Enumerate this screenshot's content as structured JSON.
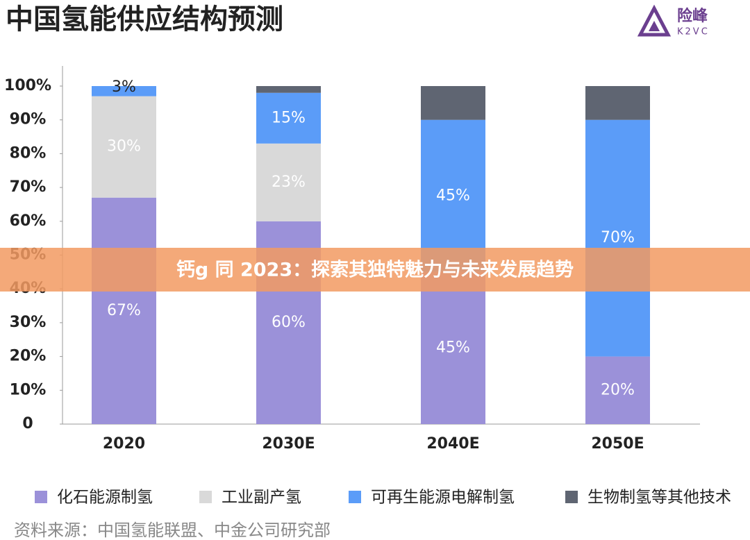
{
  "chart_data": {
    "type": "bar",
    "stacked": true,
    "title": "中国氢能供应结构预测",
    "logo": {
      "name": "险峰",
      "sub": "K2VC"
    },
    "source": "资料来源：中国氢能联盟、中金公司研究部",
    "banner": "钙g 同 2023：探索其独特魅力与未来发展趋势",
    "categories": [
      "2020",
      "2030E",
      "2040E",
      "2050E"
    ],
    "series": [
      {
        "name": "化石能源制氢",
        "color": "#9b91d9",
        "values": [
          67,
          60,
          45,
          20
        ],
        "value_labels": [
          "67%",
          "60%",
          "45%",
          "20%"
        ]
      },
      {
        "name": "工业副产氢",
        "color": "#d9d9d9",
        "values": [
          30,
          23,
          0,
          0
        ],
        "value_labels": [
          "30%",
          "23%",
          null,
          null
        ]
      },
      {
        "name": "可再生能源电解制氢",
        "color": "#5b9cf8",
        "values": [
          3,
          15,
          45,
          70
        ],
        "value_labels": [
          "3%",
          "15%",
          "45%",
          "70%"
        ]
      },
      {
        "name": "生物制氢等其他技术",
        "color": "#5f6572",
        "values": [
          0,
          2,
          10,
          10
        ]
      }
    ],
    "ylim": [
      0,
      100
    ],
    "yticks": [
      0,
      {
        "value": 10,
        "label": "10%"
      },
      {
        "value": 20,
        "label": "20%"
      },
      {
        "value": 30,
        "label": "30%"
      },
      {
        "value": 40,
        "label": "40%"
      },
      {
        "value": 50,
        "label": "50%"
      },
      {
        "value": 60,
        "label": "60%"
      },
      {
        "value": 70,
        "label": "70%"
      },
      {
        "value": 80,
        "label": "80%"
      },
      {
        "value": 90,
        "label": "90%"
      },
      {
        "value": 100,
        "label": "100%"
      }
    ],
    "grid": false
  }
}
